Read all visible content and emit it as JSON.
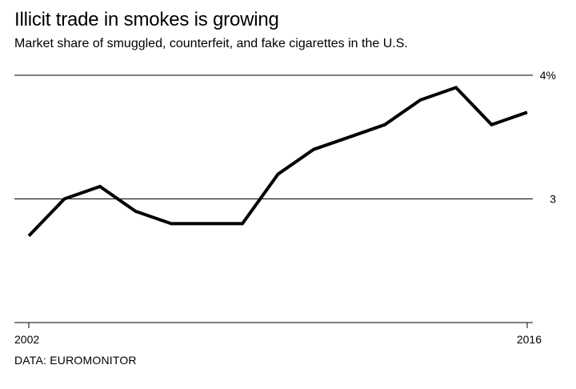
{
  "header": {
    "title": "Illicit trade in smokes is growing",
    "subtitle": "Market share of smuggled, counterfeit, and fake cigarettes in the U.S."
  },
  "footer": {
    "source": "DATA: EUROMONITOR"
  },
  "colors": {
    "line": "#000000",
    "gridline": "#000000",
    "background": "#ffffff"
  },
  "chart_data": {
    "type": "line",
    "title": "Illicit trade in smokes is growing",
    "subtitle": "Market share of smuggled, counterfeit, and fake cigarettes in the U.S.",
    "xlabel": "",
    "ylabel": "",
    "x": [
      2002,
      2003,
      2004,
      2005,
      2006,
      2007,
      2008,
      2009,
      2010,
      2011,
      2012,
      2013,
      2014,
      2015,
      2016
    ],
    "series": [
      {
        "name": "Illicit market share (%)",
        "values": [
          2.7,
          3.0,
          3.1,
          2.9,
          2.8,
          2.8,
          2.8,
          3.2,
          3.4,
          3.5,
          3.6,
          3.8,
          3.9,
          3.6,
          3.7
        ]
      }
    ],
    "xlim": [
      2002,
      2016
    ],
    "ylim": [
      2,
      4
    ],
    "x_tick_values": [
      2002,
      2016
    ],
    "x_tick_labels": [
      "2002",
      "2016"
    ],
    "y_tick_values": [
      3,
      4
    ],
    "y_tick_labels": [
      "3",
      "4%"
    ],
    "grid": true,
    "legend": "none"
  }
}
